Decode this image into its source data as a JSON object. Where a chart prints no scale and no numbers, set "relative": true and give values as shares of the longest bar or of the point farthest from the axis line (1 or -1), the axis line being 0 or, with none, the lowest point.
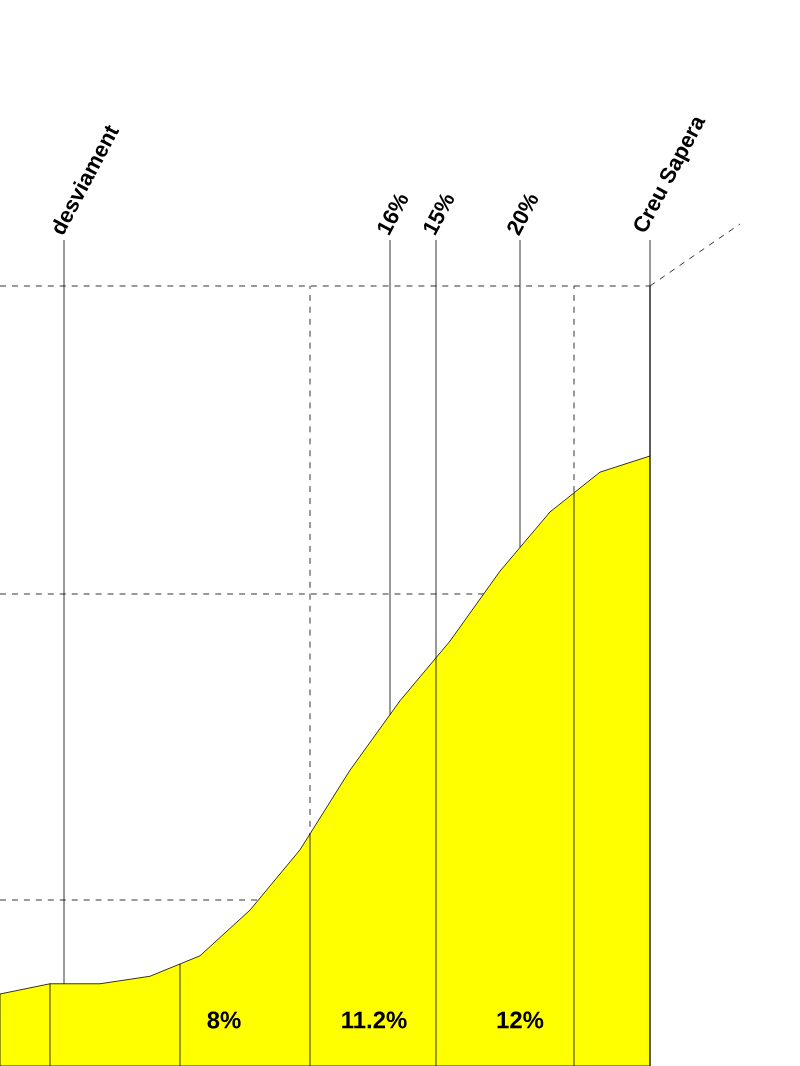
{
  "chart_data": {
    "type": "area",
    "relative": true,
    "color": "#ffff00",
    "grid": true,
    "categories": [
      null,
      null,
      null,
      null,
      null,
      null,
      null,
      null,
      null,
      null,
      null,
      null,
      null,
      null
    ],
    "values": [
      0,
      0.019,
      0.019,
      0.033,
      0.071,
      0.156,
      0.268,
      0.416,
      0.545,
      0.656,
      0.786,
      0.896,
      0.97,
      1
    ],
    "annotations": [
      "desviament",
      "16%",
      "15%",
      "20%",
      "Creu Sapera",
      "8%",
      "11.2%",
      "12%"
    ]
  }
}
